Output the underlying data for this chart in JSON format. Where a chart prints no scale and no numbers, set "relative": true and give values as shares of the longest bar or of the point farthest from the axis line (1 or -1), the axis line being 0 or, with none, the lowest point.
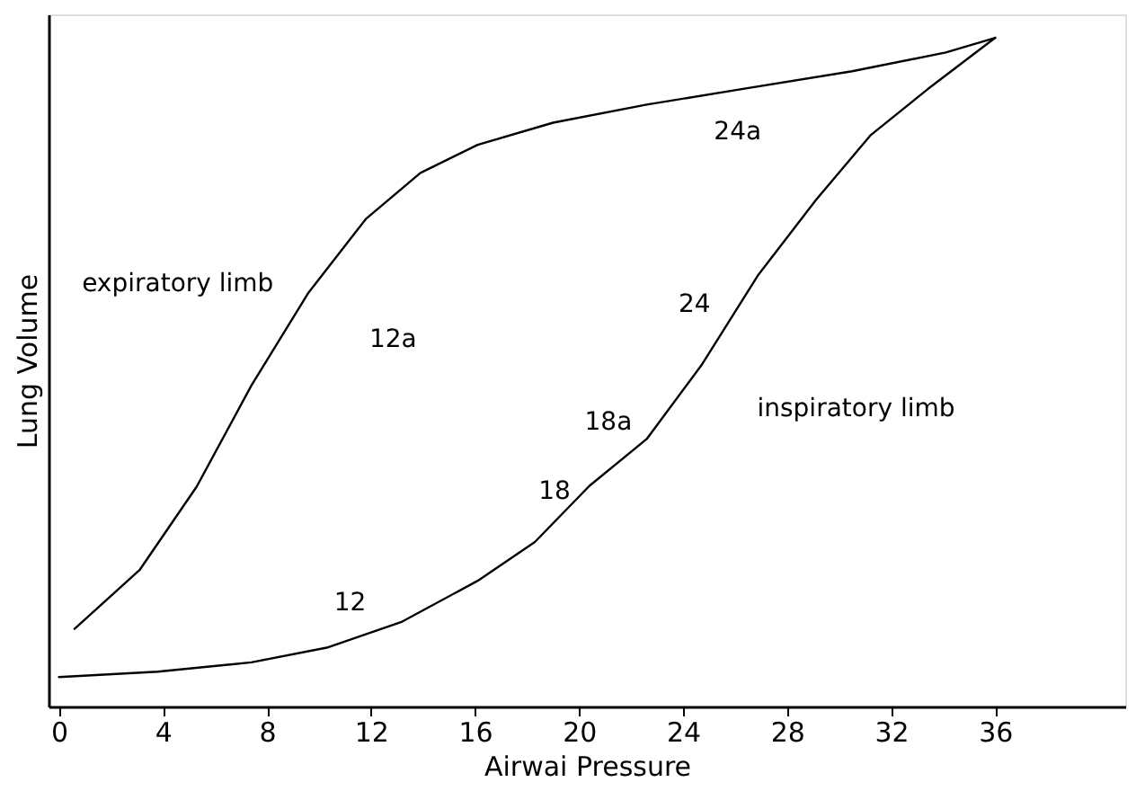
{
  "chart_data": {
    "type": "line",
    "relative": true,
    "xlabel": "Airwai Pressure",
    "ylabel": "Lung Volume",
    "xlim": [
      -0.4,
      41
    ],
    "xticks": [
      0,
      4,
      8,
      12,
      16,
      20,
      24,
      28,
      32,
      36
    ],
    "grid": false,
    "marker": "none",
    "line_style": "solid",
    "series": [
      {
        "color": "#000000",
        "x": [
          0,
          3.8,
          7.4,
          10.3,
          13.2,
          16.1,
          18.3,
          20.4,
          22.6,
          24.7,
          26.9,
          29.1,
          31.2,
          33.4,
          36
        ],
        "values": [
          0.044,
          0.052,
          0.066,
          0.088,
          0.127,
          0.188,
          0.246,
          0.33,
          0.4,
          0.51,
          0.646,
          0.757,
          0.854,
          0.923,
          1.0
        ]
      },
      {
        "color": "#000000",
        "x": [
          0.6,
          3.1,
          5.3,
          7.4,
          9.6,
          11.8,
          13.9,
          16.1,
          19,
          22.6,
          26.2,
          30.5,
          34.1,
          36
        ],
        "values": [
          0.116,
          0.204,
          0.329,
          0.48,
          0.619,
          0.729,
          0.798,
          0.84,
          0.873,
          0.9,
          0.923,
          0.95,
          0.978,
          1.0
        ]
      }
    ],
    "annotations": [
      "expiratory limb",
      "inspiratory limb",
      "12",
      "18",
      "24",
      "12a",
      "18a",
      "24a"
    ]
  }
}
